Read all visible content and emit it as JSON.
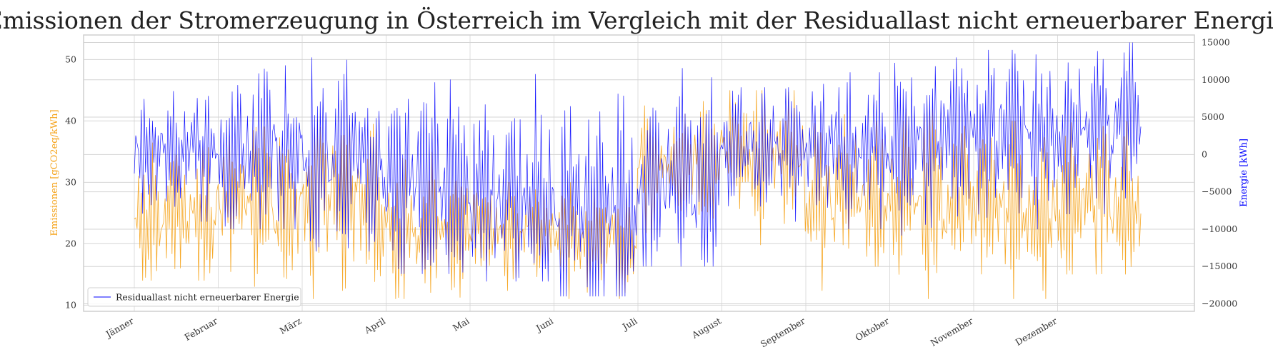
{
  "chart_data": {
    "type": "line",
    "title": "Emissionen der Stromerzeugung in Österreich im Vergleich mit der Residuallast nicht erneuerbarer Energie",
    "xlabel": "",
    "categories": [
      "Jänner",
      "Februar",
      "März",
      "April",
      "Mai",
      "Juni",
      "Juli",
      "August",
      "September",
      "Oktober",
      "November",
      "Dezember"
    ],
    "y_left": {
      "label": "Emissionen [gCO2eq/kWh]",
      "ylim": [
        9,
        54
      ],
      "ticks": [
        10,
        20,
        30,
        40,
        50
      ],
      "color": "#f5a31a"
    },
    "y_right": {
      "label": "Energie [kWh]",
      "ylim": [
        -21000,
        16000
      ],
      "ticks": [
        -20000,
        -15000,
        -10000,
        -5000,
        0,
        5000,
        10000,
        15000
      ],
      "tick_labels": [
        "−20000",
        "−15000",
        "−10000",
        "−5000",
        "0",
        "5000",
        "10000",
        "15000"
      ],
      "color": "#0000ff"
    },
    "grid": true,
    "legend": {
      "placement": "lower-left",
      "entries": [
        "Residuallast nicht erneuerbarer Energie"
      ]
    },
    "series": [
      {
        "axis": "left",
        "color": "#f5a31a",
        "monthly_mean": [
          24,
          26,
          27,
          22,
          22,
          20,
          33,
          34,
          27,
          27,
          25,
          26
        ],
        "monthly_min": [
          14,
          13,
          11,
          11,
          12,
          11,
          20,
          18,
          11,
          11,
          11,
          15
        ],
        "monthly_max": [
          39,
          42,
          44,
          36,
          32,
          30,
          44,
          45,
          42,
          42,
          40,
          43
        ]
      },
      {
        "name": "Residuallast nicht erneuerbarer Energie",
        "axis": "right",
        "color": "#0000ff",
        "monthly_mean": [
          500,
          0,
          -1000,
          -3500,
          -6000,
          -8000,
          -4000,
          1000,
          1000,
          1500,
          2500,
          3500
        ],
        "monthly_min": [
          -9000,
          -10000,
          -13000,
          -16000,
          -17000,
          -19000,
          -15000,
          -9000,
          -10000,
          -12000,
          -11000,
          -8000
        ],
        "monthly_max": [
          10000,
          15000,
          13000,
          15000,
          14000,
          13000,
          12000,
          9000,
          11000,
          13000,
          14000,
          15000
        ]
      }
    ]
  }
}
